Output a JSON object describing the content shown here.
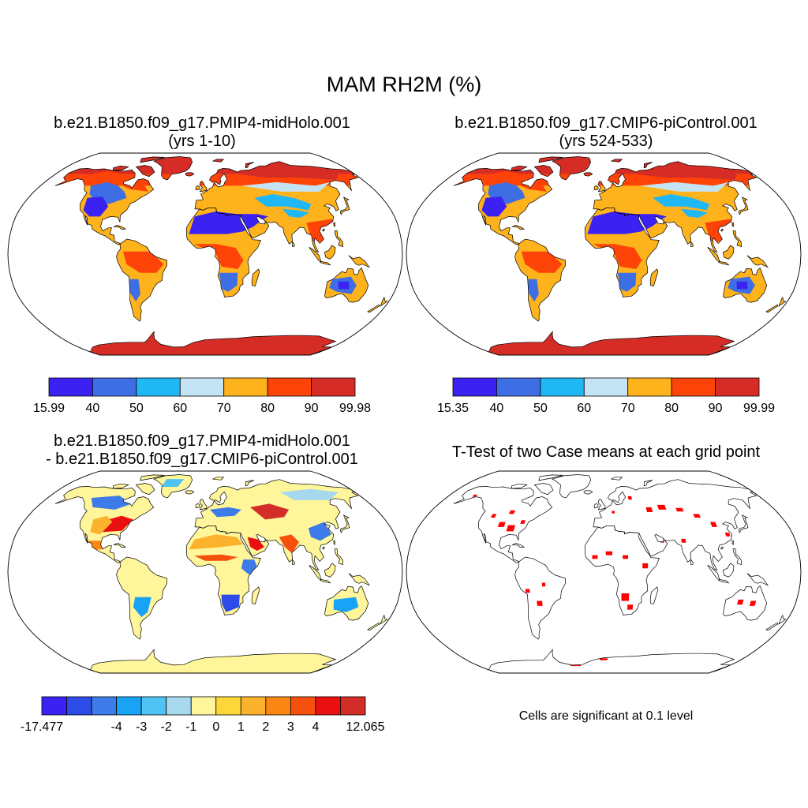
{
  "title": "MAM RH2M (%)",
  "panels": [
    {
      "id": "case1",
      "title_line1": "b.e21.B1850.f09_g17.PMIP4-midHolo.001",
      "title_line2": "(yrs 1-10)",
      "colorbar": {
        "colors": [
          "#3b22f2",
          "#3e6ee4",
          "#1fb8f5",
          "#c4e4f6",
          "#feb21c",
          "#fe4309",
          "#d52d26"
        ],
        "labels": [
          "15.99",
          "40",
          "50",
          "60",
          "70",
          "80",
          "90",
          "99.98"
        ]
      }
    },
    {
      "id": "case2",
      "title_line1": "b.e21.B1850.f09_g17.CMIP6-piControl.001",
      "title_line2": "(yrs 524-533)",
      "colorbar": {
        "colors": [
          "#3b22f2",
          "#3e6ee4",
          "#1fb8f5",
          "#c4e4f6",
          "#feb21c",
          "#fe4309",
          "#d52d26"
        ],
        "labels": [
          "15.35",
          "40",
          "50",
          "60",
          "70",
          "80",
          "90",
          "99.99"
        ]
      }
    },
    {
      "id": "diff",
      "title_line1": "b.e21.B1850.f09_g17.PMIP4-midHolo.001",
      "title_line2": "- b.e21.B1850.f09_g17.CMIP6-piControl.001",
      "colorbar": {
        "colors": [
          "#3b22f2",
          "#2d4be6",
          "#3c7be8",
          "#19a3f6",
          "#4fc3f2",
          "#a8d8ee",
          "#fff59a",
          "#fdd73a",
          "#fcb22c",
          "#fb8613",
          "#f6500e",
          "#ea0f10",
          "#d32d27"
        ],
        "labels": [
          "-17.477",
          "-4",
          "-3",
          "-2",
          "-1",
          "0",
          "1",
          "2",
          "3",
          "4",
          "12.065"
        ]
      }
    },
    {
      "id": "ttest",
      "title_line1": "T-Test of two Case means at each grid point",
      "note": "Cells are significant at 0.1 level",
      "sig_color": "#ff0000"
    }
  ]
}
